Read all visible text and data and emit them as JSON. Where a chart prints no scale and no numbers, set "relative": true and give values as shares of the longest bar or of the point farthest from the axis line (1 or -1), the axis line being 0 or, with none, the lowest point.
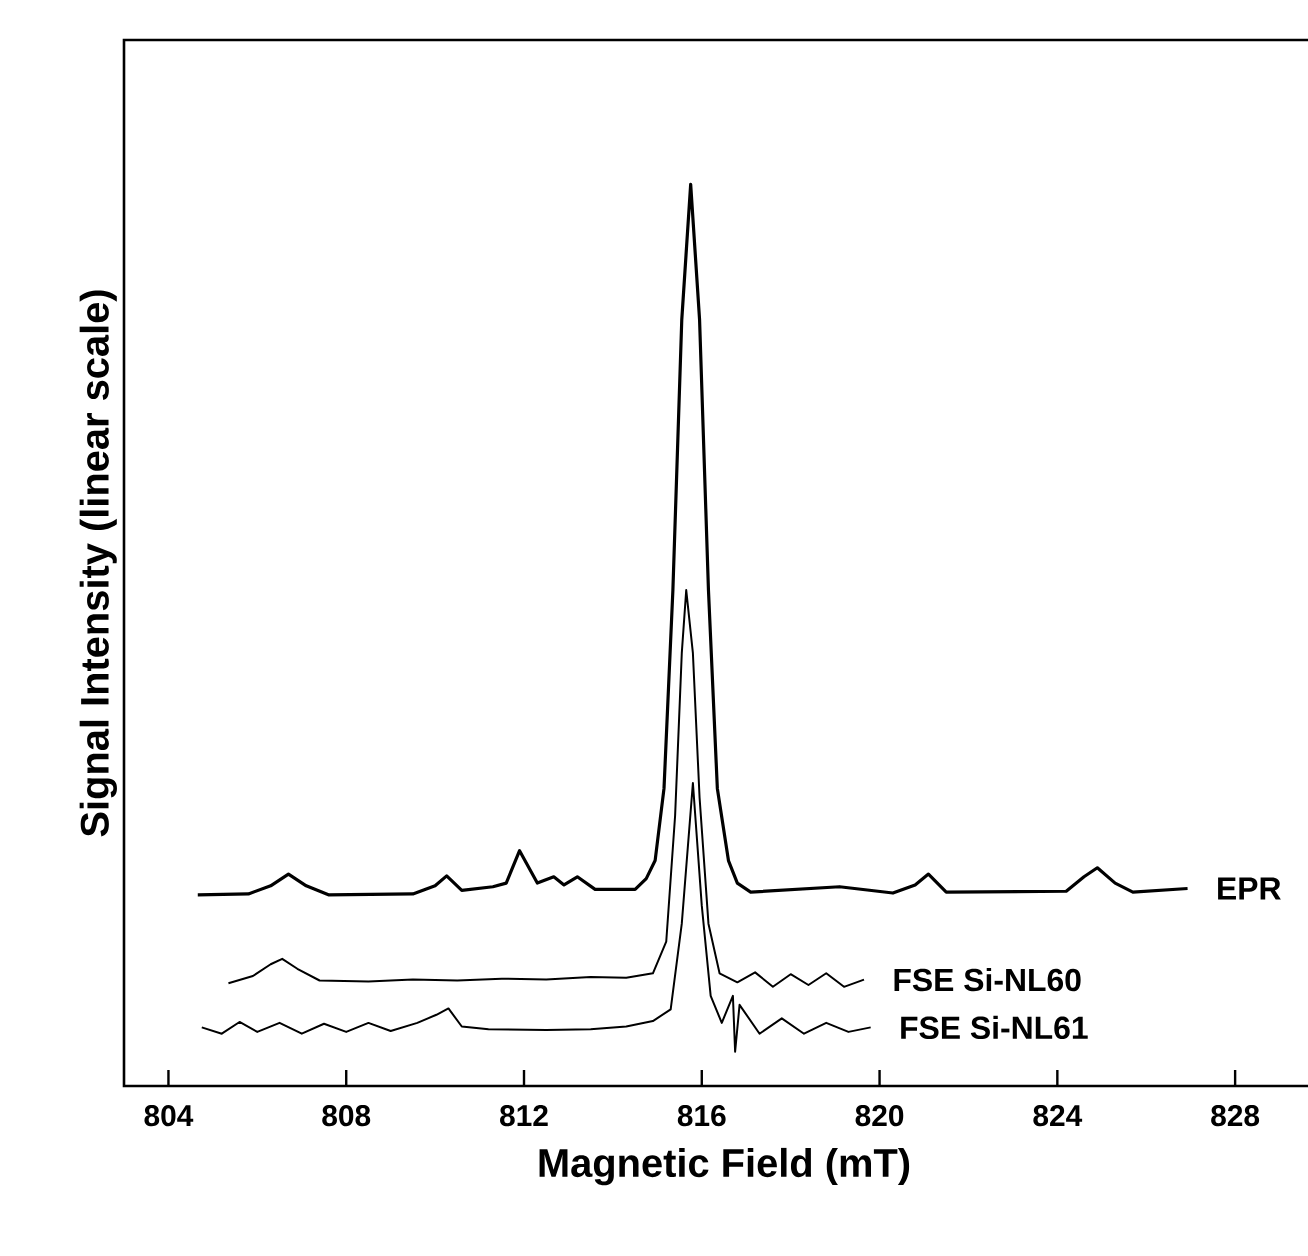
{
  "chart_data": {
    "type": "line",
    "relative": true,
    "xlabel": "Magnetic Field (mT)",
    "ylabel": "Signal Intensity (linear scale)",
    "xlim": [
      803,
      830
    ],
    "xticks": [
      804,
      808,
      812,
      816,
      820,
      824,
      828
    ],
    "tick_labels": "x",
    "grid": false,
    "series": [
      {
        "name": "EPR",
        "color": "#000000",
        "x": [
          804.66,
          805.8,
          806.3,
          806.7,
          807.1,
          807.6,
          809.5,
          810.0,
          810.26,
          810.6,
          811.3,
          811.6,
          811.9,
          812.3,
          812.67,
          812.9,
          813.2,
          813.6,
          814.5,
          814.75,
          814.95,
          815.15,
          815.35,
          815.55,
          815.75,
          815.95,
          816.15,
          816.35,
          816.6,
          816.8,
          817.1,
          819.1,
          820.3,
          820.8,
          821.1,
          821.5,
          824.2,
          824.6,
          824.9,
          825.3,
          825.7,
          826.93
        ],
        "values": [
          0.212,
          0.213,
          0.222,
          0.235,
          0.222,
          0.212,
          0.213,
          0.222,
          0.233,
          0.217,
          0.221,
          0.225,
          0.261,
          0.225,
          0.232,
          0.223,
          0.232,
          0.218,
          0.218,
          0.23,
          0.25,
          0.33,
          0.55,
          0.85,
          1.0,
          0.85,
          0.55,
          0.33,
          0.25,
          0.225,
          0.215,
          0.221,
          0.214,
          0.223,
          0.235,
          0.215,
          0.216,
          0.232,
          0.242,
          0.225,
          0.215,
          0.219
        ]
      },
      {
        "name": "FSE Si-NL60",
        "color": "#000000",
        "x": [
          805.35,
          805.9,
          806.3,
          806.56,
          806.9,
          807.4,
          808.5,
          809.5,
          810.5,
          811.5,
          812.5,
          813.5,
          814.3,
          814.9,
          815.2,
          815.4,
          815.55,
          815.65,
          815.8,
          815.95,
          816.15,
          816.4,
          816.8,
          817.2,
          817.6,
          818.0,
          818.4,
          818.8,
          819.2,
          819.65
        ],
        "values": [
          0.114,
          0.122,
          0.135,
          0.141,
          0.13,
          0.117,
          0.116,
          0.118,
          0.117,
          0.119,
          0.118,
          0.121,
          0.12,
          0.125,
          0.16,
          0.3,
          0.48,
          0.55,
          0.48,
          0.32,
          0.18,
          0.125,
          0.115,
          0.126,
          0.11,
          0.124,
          0.112,
          0.125,
          0.11,
          0.118
        ]
      },
      {
        "name": "FSE Si-NL61",
        "color": "#000000",
        "x": [
          804.75,
          805.2,
          805.6,
          806.0,
          806.5,
          807.0,
          807.5,
          808.0,
          808.5,
          809.0,
          809.6,
          810.03,
          810.3,
          810.6,
          811.2,
          812.5,
          813.5,
          814.3,
          814.9,
          815.3,
          815.55,
          815.8,
          816.0,
          816.2,
          816.45,
          816.7,
          816.75,
          816.85,
          817.3,
          817.8,
          818.3,
          818.8,
          819.3,
          819.8
        ],
        "values": [
          0.065,
          0.058,
          0.071,
          0.06,
          0.07,
          0.058,
          0.069,
          0.06,
          0.07,
          0.061,
          0.07,
          0.079,
          0.086,
          0.066,
          0.063,
          0.062,
          0.063,
          0.066,
          0.072,
          0.085,
          0.18,
          0.336,
          0.2,
          0.1,
          0.07,
          0.1,
          0.038,
          0.09,
          0.058,
          0.075,
          0.058,
          0.07,
          0.06,
          0.065
        ]
      }
    ]
  }
}
